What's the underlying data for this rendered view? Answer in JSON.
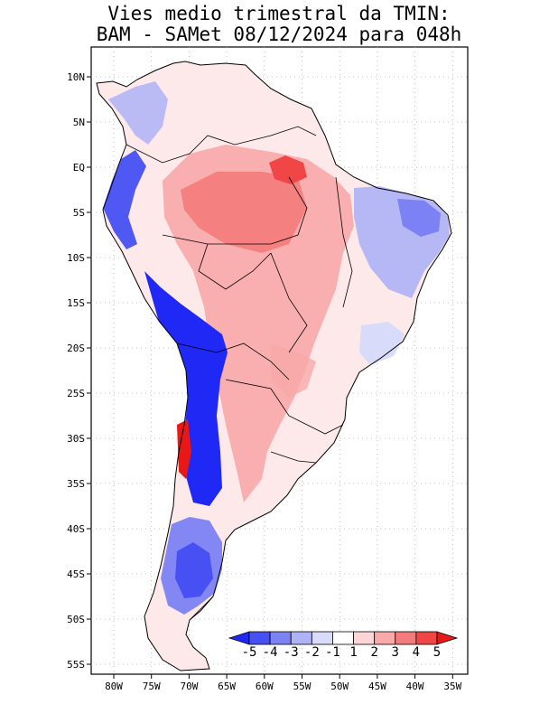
{
  "title": {
    "line1": "Vies medio trimestral da TMIN:",
    "line2": "BAM - SAMet 08/12/2024  para 048h"
  },
  "map": {
    "lon_labels": [
      "80W",
      "75W",
      "70W",
      "65W",
      "60W",
      "55W",
      "50W",
      "45W",
      "40W",
      "35W"
    ],
    "lat_labels": [
      "10N",
      "5N",
      "EQ",
      "5S",
      "10S",
      "15S",
      "20S",
      "25S",
      "30S",
      "35S",
      "40S",
      "45S",
      "50S",
      "55S"
    ],
    "grid": true
  },
  "colorbar": {
    "labels": [
      "-5",
      "-4",
      "-3",
      "-2",
      "-1",
      "1",
      "2",
      "3",
      "4",
      "5"
    ],
    "colors": [
      "#1f28f5",
      "#4650f3",
      "#7c82f3",
      "#aeb2f6",
      "#d9dbfa",
      "#ffffff",
      "#fcd6d6",
      "#f8a9a9",
      "#f47b7b",
      "#f04646",
      "#e81818"
    ]
  }
}
